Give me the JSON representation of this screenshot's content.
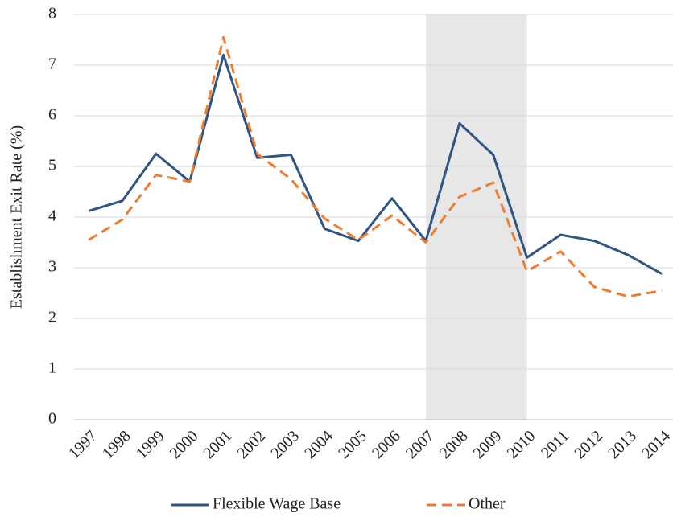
{
  "chart_data": {
    "type": "line",
    "y_label": "Establishment Exit Rate (%)",
    "x": [
      1997,
      1998,
      1999,
      2000,
      2001,
      2002,
      2003,
      2004,
      2005,
      2006,
      2007,
      2008,
      2009,
      2010,
      2011,
      2012,
      2013,
      2014
    ],
    "xlim": [
      1996.57,
      2014.33
    ],
    "ylim": [
      0,
      8
    ],
    "yticks": [
      0,
      1,
      2,
      3,
      4,
      5,
      6,
      7,
      8
    ],
    "grid": true,
    "shaded_region": [
      2007,
      2010
    ],
    "shaded_color": "#e7e7e7",
    "legend": "bottom",
    "series": [
      {
        "name": "Flexible Wage Base",
        "color": "#2e5583",
        "dash": false,
        "values": [
          4.12,
          4.32,
          5.25,
          4.7,
          7.2,
          5.17,
          5.23,
          3.77,
          3.53,
          4.37,
          3.53,
          5.85,
          5.23,
          3.2,
          3.65,
          3.53,
          3.25,
          2.88
        ]
      },
      {
        "name": "Other",
        "color": "#ed7d31",
        "dash": true,
        "values": [
          3.55,
          3.95,
          4.83,
          4.7,
          7.55,
          5.25,
          4.75,
          3.97,
          3.55,
          4.03,
          3.5,
          4.4,
          4.68,
          2.93,
          3.32,
          2.62,
          2.43,
          2.55
        ]
      }
    ]
  }
}
